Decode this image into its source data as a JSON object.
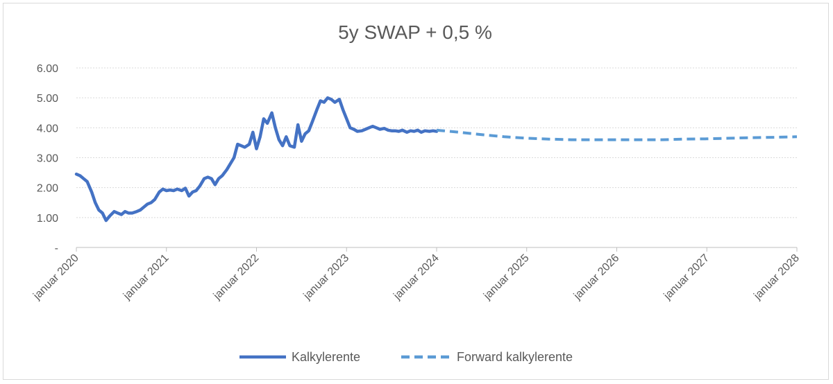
{
  "chart_data": {
    "type": "line",
    "title": "5y SWAP + 0,5 %",
    "xlabel": "",
    "ylabel": "",
    "ylim": [
      0,
      6
    ],
    "y_ticks": [
      {
        "value": 0,
        "label": "-"
      },
      {
        "value": 1,
        "label": "1.00"
      },
      {
        "value": 2,
        "label": "2.00"
      },
      {
        "value": 3,
        "label": "3.00"
      },
      {
        "value": 4,
        "label": "4.00"
      },
      {
        "value": 5,
        "label": "5.00"
      },
      {
        "value": 6,
        "label": "6.00"
      }
    ],
    "xlim": [
      2020,
      2028
    ],
    "x_ticks": [
      {
        "value": 2020,
        "label": "januar 2020"
      },
      {
        "value": 2021,
        "label": "januar 2021"
      },
      {
        "value": 2022,
        "label": "januar 2022"
      },
      {
        "value": 2023,
        "label": "januar 2023"
      },
      {
        "value": 2024,
        "label": "januar 2024"
      },
      {
        "value": 2025,
        "label": "januar 2025"
      },
      {
        "value": 2026,
        "label": "januar 2026"
      },
      {
        "value": 2027,
        "label": "januar 2027"
      },
      {
        "value": 2028,
        "label": "januar 2028"
      }
    ],
    "grid": true,
    "legend_position": "bottom",
    "colors": {
      "series1": "#4472c4",
      "series2": "#5b9bd5",
      "grid": "#d9d9d9",
      "axis": "#bfbfbf",
      "text": "#595959"
    },
    "series": [
      {
        "name": "Kalkylerente",
        "style": "solid",
        "x": [
          2020.0,
          2020.04,
          2020.08,
          2020.12,
          2020.17,
          2020.21,
          2020.25,
          2020.29,
          2020.33,
          2020.37,
          2020.42,
          2020.46,
          2020.5,
          2020.54,
          2020.58,
          2020.62,
          2020.67,
          2020.71,
          2020.75,
          2020.79,
          2020.83,
          2020.87,
          2020.92,
          2020.96,
          2021.0,
          2021.04,
          2021.08,
          2021.12,
          2021.17,
          2021.21,
          2021.25,
          2021.29,
          2021.33,
          2021.37,
          2021.42,
          2021.46,
          2021.5,
          2021.54,
          2021.58,
          2021.62,
          2021.67,
          2021.71,
          2021.75,
          2021.79,
          2021.83,
          2021.87,
          2021.92,
          2021.96,
          2022.0,
          2022.04,
          2022.08,
          2022.12,
          2022.17,
          2022.21,
          2022.25,
          2022.29,
          2022.33,
          2022.37,
          2022.42,
          2022.46,
          2022.5,
          2022.54,
          2022.58,
          2022.62,
          2022.67,
          2022.71,
          2022.75,
          2022.79,
          2022.83,
          2022.87,
          2022.92,
          2022.96,
          2023.0,
          2023.04,
          2023.08,
          2023.12,
          2023.17,
          2023.21,
          2023.25,
          2023.29,
          2023.33,
          2023.37,
          2023.42,
          2023.46,
          2023.5,
          2023.54,
          2023.58,
          2023.62,
          2023.67,
          2023.71,
          2023.75,
          2023.79,
          2023.83,
          2023.87,
          2023.92,
          2023.96,
          2024.0
        ],
        "values": [
          2.45,
          2.4,
          2.3,
          2.2,
          1.85,
          1.5,
          1.25,
          1.15,
          0.9,
          1.05,
          1.2,
          1.15,
          1.1,
          1.2,
          1.15,
          1.15,
          1.2,
          1.25,
          1.35,
          1.45,
          1.5,
          1.6,
          1.85,
          1.95,
          1.9,
          1.92,
          1.9,
          1.95,
          1.9,
          1.98,
          1.72,
          1.85,
          1.9,
          2.05,
          2.3,
          2.35,
          2.3,
          2.1,
          2.3,
          2.4,
          2.6,
          2.8,
          3.0,
          3.45,
          3.4,
          3.35,
          3.45,
          3.85,
          3.3,
          3.7,
          4.3,
          4.15,
          4.5,
          4.0,
          3.6,
          3.4,
          3.7,
          3.4,
          3.35,
          4.1,
          3.55,
          3.8,
          3.9,
          4.2,
          4.6,
          4.9,
          4.85,
          5.0,
          4.95,
          4.85,
          4.95,
          4.6,
          4.3,
          4.0,
          3.95,
          3.88,
          3.9,
          3.95,
          4.0,
          4.05,
          4.0,
          3.95,
          3.98,
          3.92,
          3.9,
          3.9,
          3.88,
          3.92,
          3.85,
          3.9,
          3.88,
          3.92,
          3.85,
          3.9,
          3.88,
          3.9,
          3.88
        ]
      },
      {
        "name": "Forward kalkylerente",
        "style": "dashed",
        "x": [
          2024.0,
          2024.25,
          2024.5,
          2024.75,
          2025.0,
          2025.25,
          2025.5,
          2025.75,
          2026.0,
          2026.25,
          2026.5,
          2026.75,
          2027.0,
          2027.25,
          2027.5,
          2027.75,
          2028.0
        ],
        "values": [
          3.92,
          3.85,
          3.77,
          3.7,
          3.65,
          3.62,
          3.6,
          3.6,
          3.6,
          3.6,
          3.6,
          3.62,
          3.63,
          3.65,
          3.67,
          3.68,
          3.7
        ]
      }
    ]
  }
}
